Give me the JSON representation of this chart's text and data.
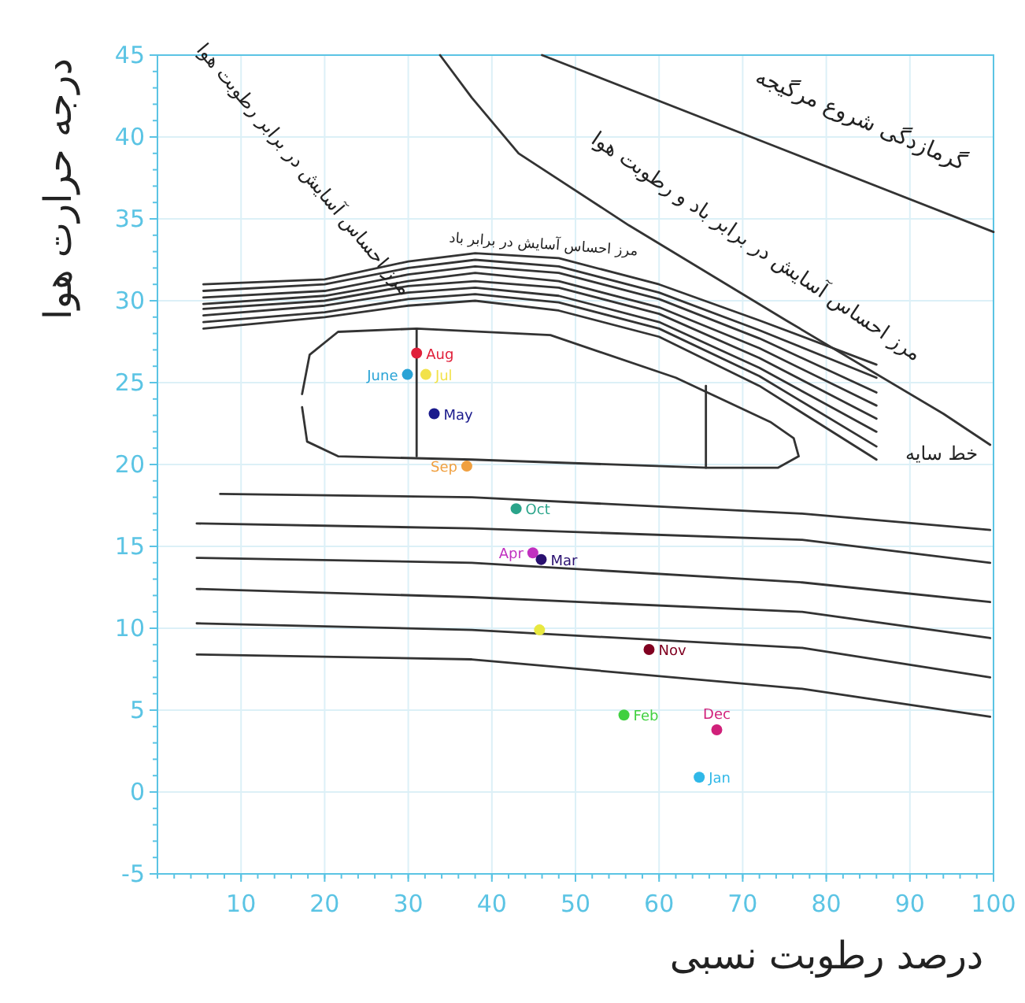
{
  "chart_data": {
    "type": "scatter",
    "xlabel": "درصد رطوبت نسبی",
    "ylabel": "درجه حرارت هوا",
    "xlim": [
      0,
      100
    ],
    "ylim": [
      -5,
      45
    ],
    "xticks": [
      10,
      20,
      30,
      40,
      50,
      60,
      70,
      80,
      90,
      100
    ],
    "yticks": [
      -5,
      0,
      5,
      10,
      15,
      20,
      25,
      30,
      35,
      40,
      45
    ],
    "grid": true,
    "annotations": [
      "مرز احساس آسایش در برابر رطوبت هوا",
      "مرز احساس آسایش در برابر باد",
      "مرز احساس آسایش در برابر باد و رطوبت هوا",
      "گرمازدگی شروع مرگیجه",
      "خط سایه"
    ],
    "series": [
      {
        "type": "line",
        "color": "#333333",
        "x": [
          46,
          73,
          100
        ],
        "values": [
          45,
          39.6,
          34.2
        ]
      },
      {
        "type": "line",
        "color": "#333333",
        "x": [
          33.8,
          37.6,
          43.2,
          56.4,
          75.2,
          94,
          99.6
        ],
        "values": [
          45,
          42.4,
          39.0,
          34.6,
          28.8,
          23.1,
          21.2
        ]
      },
      {
        "type": "line",
        "color": "#333333",
        "x": [
          5.5,
          20,
          30,
          38,
          48,
          60,
          72,
          86
        ],
        "values": [
          31.0,
          31.3,
          32.4,
          32.9,
          32.6,
          31.0,
          28.8,
          26.1
        ]
      },
      {
        "type": "line",
        "color": "#333333",
        "x": [
          5.5,
          20,
          30,
          38,
          48,
          60,
          72,
          86
        ],
        "values": [
          30.6,
          31.0,
          32.0,
          32.5,
          32.1,
          30.5,
          28.2,
          25.3
        ]
      },
      {
        "type": "line",
        "color": "#333333",
        "x": [
          5.5,
          20,
          30,
          38,
          48,
          60,
          72,
          86
        ],
        "values": [
          30.2,
          30.6,
          31.6,
          32.1,
          31.7,
          30.1,
          27.7,
          24.4
        ]
      },
      {
        "type": "line",
        "color": "#333333",
        "x": [
          5.5,
          20,
          30,
          38,
          48,
          60,
          72,
          86
        ],
        "values": [
          29.8,
          30.3,
          31.2,
          31.7,
          31.2,
          29.6,
          27.1,
          23.6
        ]
      },
      {
        "type": "line",
        "color": "#333333",
        "x": [
          5.5,
          20,
          30,
          38,
          48,
          60,
          72,
          86
        ],
        "values": [
          29.5,
          30.0,
          30.9,
          31.2,
          30.8,
          29.2,
          26.5,
          22.8
        ]
      },
      {
        "type": "line",
        "color": "#333333",
        "x": [
          5.5,
          20,
          30,
          38,
          48,
          60,
          72,
          86
        ],
        "values": [
          29.1,
          29.7,
          30.5,
          30.8,
          30.3,
          28.7,
          25.9,
          22.0
        ]
      },
      {
        "type": "line",
        "color": "#333333",
        "x": [
          5.5,
          20,
          30,
          38,
          48,
          60,
          72,
          86
        ],
        "values": [
          28.7,
          29.3,
          30.1,
          30.4,
          29.9,
          28.3,
          25.4,
          21.1
        ]
      },
      {
        "type": "line",
        "color": "#333333",
        "x": [
          5.5,
          20,
          30,
          38,
          48,
          60,
          72,
          86
        ],
        "values": [
          28.3,
          29.0,
          29.7,
          30.0,
          29.4,
          27.8,
          24.8,
          20.3
        ]
      },
      {
        "type": "line",
        "color": "#333333",
        "x": [
          17.3,
          18.2,
          21.6,
          31.0,
          47.0,
          62.0,
          73.3,
          76.1,
          76.7,
          74.2,
          65.8,
          37.6,
          21.6,
          17.9,
          17.3
        ],
        "values": [
          24.3,
          26.7,
          28.1,
          28.3,
          27.9,
          25.3,
          22.6,
          21.6,
          20.5,
          19.8,
          19.8,
          20.3,
          20.5,
          21.4,
          23.5
        ]
      },
      {
        "type": "line",
        "color": "#333333",
        "x": [
          31,
          31
        ],
        "values": [
          28.3,
          20.5
        ]
      },
      {
        "type": "line",
        "color": "#333333",
        "x": [
          65.6,
          65.6
        ],
        "values": [
          24.8,
          19.8
        ]
      },
      {
        "type": "line",
        "color": "#333333",
        "x": [
          7.5,
          37.6,
          77.1,
          99.6
        ],
        "values": [
          18.2,
          18.0,
          17.0,
          16.0
        ]
      },
      {
        "type": "line",
        "color": "#333333",
        "x": [
          4.7,
          37.6,
          77.1,
          99.6
        ],
        "values": [
          16.4,
          16.1,
          15.4,
          14.0
        ]
      },
      {
        "type": "line",
        "color": "#333333",
        "x": [
          4.7,
          37.6,
          77.1,
          99.6
        ],
        "values": [
          14.3,
          14.0,
          12.8,
          11.6
        ]
      },
      {
        "type": "line",
        "color": "#333333",
        "x": [
          4.7,
          37.6,
          77.1,
          99.6
        ],
        "values": [
          12.4,
          11.9,
          11.0,
          9.4
        ]
      },
      {
        "type": "line",
        "color": "#333333",
        "x": [
          4.7,
          37.6,
          77.1,
          99.6
        ],
        "values": [
          10.3,
          9.9,
          8.8,
          7.0
        ]
      },
      {
        "type": "line",
        "color": "#333333",
        "x": [
          4.7,
          37.6,
          77.1,
          99.6
        ],
        "values": [
          8.4,
          8.1,
          6.3,
          4.6
        ]
      },
      {
        "name": "Aug",
        "color": "#e0203a",
        "marker": "circle",
        "x": [
          31.0
        ],
        "values": [
          26.8
        ]
      },
      {
        "name": "June",
        "color": "#29a3d6",
        "marker": "circle",
        "x": [
          29.9
        ],
        "values": [
          25.5
        ]
      },
      {
        "name": "Jul",
        "color": "#f2e24a",
        "marker": "circle",
        "x": [
          32.1
        ],
        "values": [
          25.5
        ]
      },
      {
        "name": "May",
        "color": "#1a1a8c",
        "marker": "circle",
        "x": [
          33.1
        ],
        "values": [
          23.1
        ]
      },
      {
        "name": "Sep",
        "color": "#f0a040",
        "marker": "circle",
        "x": [
          37
        ],
        "values": [
          19.9
        ]
      },
      {
        "name": "Oct",
        "color": "#2aa48a",
        "marker": "circle",
        "x": [
          42.9
        ],
        "values": [
          17.3
        ]
      },
      {
        "name": "Apr",
        "color": "#c030c0",
        "marker": "circle",
        "x": [
          44.9
        ],
        "values": [
          14.6
        ]
      },
      {
        "name": "Mar",
        "color": "#2a1070",
        "marker": "circle",
        "x": [
          45.9
        ],
        "values": [
          14.2
        ]
      },
      {
        "color": "#e8e840",
        "marker": "circle",
        "x": [
          45.7
        ],
        "values": [
          9.9
        ]
      },
      {
        "name": "Nov",
        "color": "#800020",
        "marker": "circle",
        "x": [
          58.8
        ],
        "values": [
          8.7
        ]
      },
      {
        "name": "Feb",
        "color": "#40d040",
        "marker": "circle",
        "x": [
          55.8
        ],
        "values": [
          4.7
        ]
      },
      {
        "name": "Dec",
        "color": "#d0207a",
        "marker": "circle",
        "x": [
          66.9
        ],
        "values": [
          3.8
        ]
      },
      {
        "name": "Jan",
        "color": "#30b8e8",
        "marker": "circle",
        "x": [
          64.8
        ],
        "values": [
          0.9
        ]
      }
    ]
  }
}
